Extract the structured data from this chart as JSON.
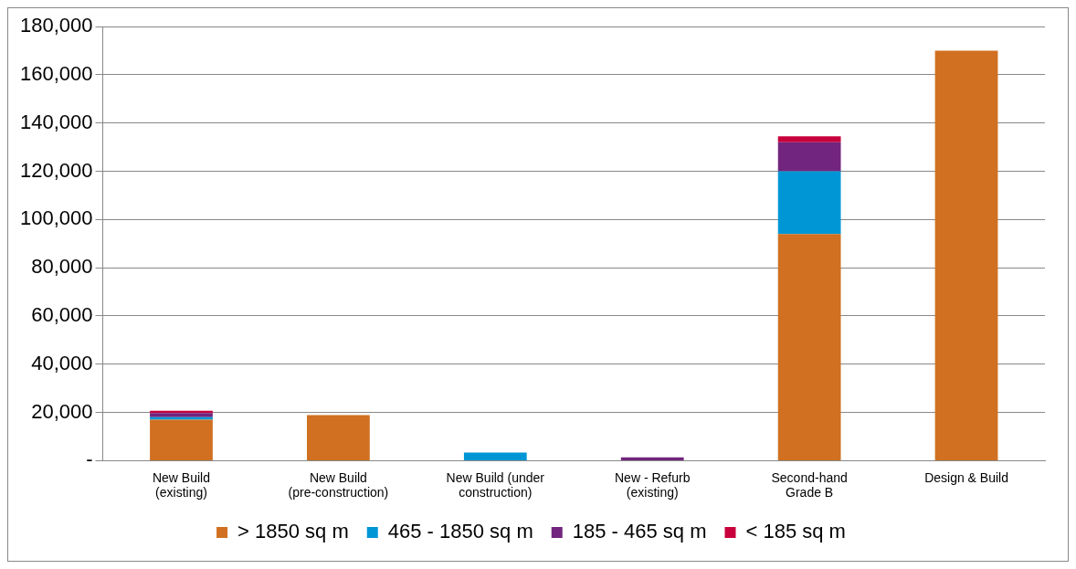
{
  "chart_data": {
    "type": "bar",
    "stacked": true,
    "categories": [
      "New Build (existing)",
      "New Build (pre-construction)",
      "New Build (under construction)",
      "New - Refurb (existing)",
      "Second-hand Grade B",
      "Design & Build"
    ],
    "series": [
      {
        "name": "> 1850 sq m",
        "color": "#d07020",
        "values": [
          17000,
          18900,
          0,
          0,
          94000,
          170000
        ]
      },
      {
        "name": "465 - 1850 sq m",
        "color": "#0096d6",
        "values": [
          1000,
          0,
          3400,
          0,
          26000,
          0
        ]
      },
      {
        "name": "185 - 465 sq m",
        "color": "#72257e",
        "values": [
          1700,
          0,
          0,
          1400,
          12000,
          0
        ]
      },
      {
        "name": "< 185 sq m",
        "color": "#c8003c",
        "values": [
          1000,
          0,
          0,
          0,
          2500,
          0
        ]
      }
    ],
    "ylim": [
      0,
      180000
    ],
    "yticks": [
      {
        "value": 0,
        "label": "-"
      },
      {
        "value": 20000,
        "label": "20,000"
      },
      {
        "value": 40000,
        "label": "40,000"
      },
      {
        "value": 60000,
        "label": "60,000"
      },
      {
        "value": 80000,
        "label": "80,000"
      },
      {
        "value": 100000,
        "label": "100,000"
      },
      {
        "value": 120000,
        "label": "120,000"
      },
      {
        "value": 140000,
        "label": "140,000"
      },
      {
        "value": 160000,
        "label": "160,000"
      },
      {
        "value": 180000,
        "label": "180,000"
      }
    ],
    "grid": "y",
    "legend": "bottom"
  }
}
